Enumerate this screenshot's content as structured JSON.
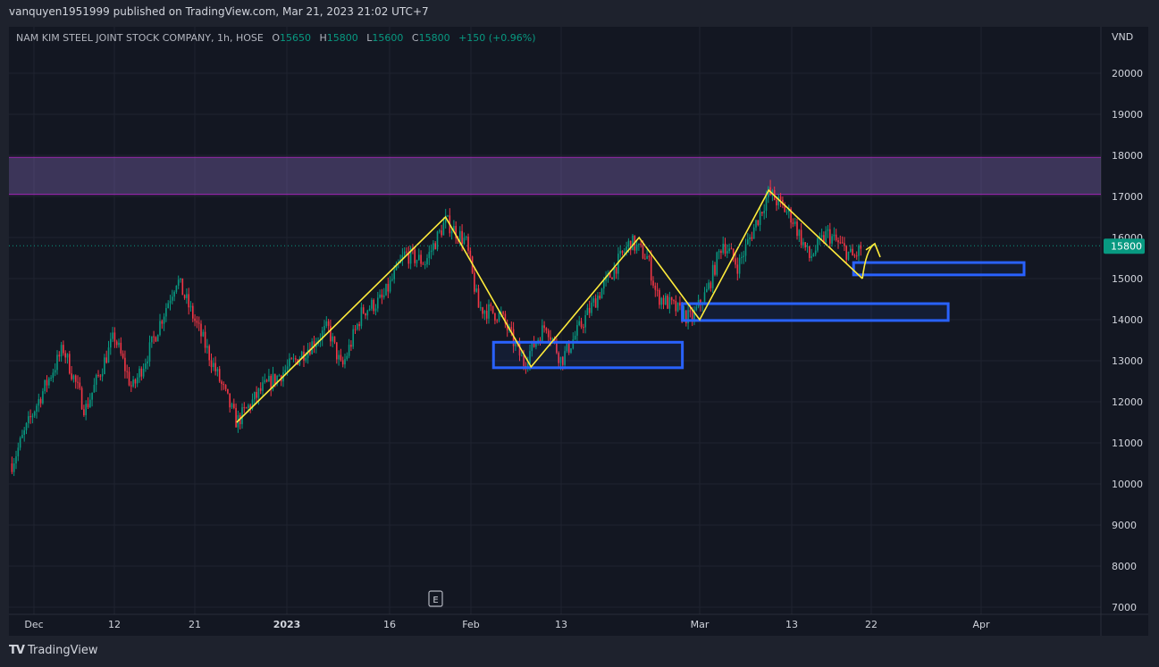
{
  "header": {
    "published": "vanquyen1951999 published on TradingView.com, Mar 21, 2023 21:02 UTC+7"
  },
  "legend": {
    "symbol": "NAM KIM STEEL JOINT STOCK COMPANY, 1h, HOSE",
    "o_label": "O",
    "o": "15650",
    "h_label": "H",
    "h": "15800",
    "l_label": "L",
    "l": "15600",
    "c_label": "C",
    "c": "15800",
    "change": "+150 (+0.96%)"
  },
  "footer": {
    "brand": "TradingView"
  },
  "earnings_marker": "E",
  "chart_data": {
    "type": "candlestick",
    "timeframe": "1h",
    "currency": "VND",
    "ylim": [
      7000,
      20500
    ],
    "y_ticks": [
      "20000",
      "19000",
      "18000",
      "17000",
      "16000",
      "15000",
      "14000",
      "13000",
      "12000",
      "11000",
      "10000",
      "9000",
      "8000",
      "7000"
    ],
    "x_ticks": [
      {
        "label": "Dec",
        "date": "2022-12-01"
      },
      {
        "label": "12",
        "date": "2022-12-12"
      },
      {
        "label": "21",
        "date": "2022-12-21"
      },
      {
        "label": "2023",
        "date": "2023-01-01"
      },
      {
        "label": "16",
        "date": "2023-01-16"
      },
      {
        "label": "Feb",
        "date": "2023-02-01"
      },
      {
        "label": "13",
        "date": "2023-02-13"
      },
      {
        "label": "Mar",
        "date": "2023-03-01"
      },
      {
        "label": "13",
        "date": "2023-03-13"
      },
      {
        "label": "22",
        "date": "2023-03-22"
      },
      {
        "label": "Apr",
        "date": "2023-04-01"
      }
    ],
    "last_price": "15800",
    "colors": {
      "up": "#089981",
      "down": "#f23645",
      "zigzag": "#ffeb3b",
      "boxes": "#2962ff",
      "zone": "#9c27b0"
    },
    "price_path": [
      [
        "2022-11-28",
        10500
      ],
      [
        "2022-12-01",
        11800
      ],
      [
        "2022-12-05",
        13300
      ],
      [
        "2022-12-08",
        11800
      ],
      [
        "2022-12-12",
        13600
      ],
      [
        "2022-12-14",
        12300
      ],
      [
        "2022-12-16",
        13300
      ],
      [
        "2022-12-19",
        15000
      ],
      [
        "2022-12-22",
        13500
      ],
      [
        "2022-12-26",
        11500
      ],
      [
        "2022-12-29",
        12300
      ],
      [
        "2023-01-01",
        12800
      ],
      [
        "2023-01-07",
        13800
      ],
      [
        "2023-01-09",
        12800
      ],
      [
        "2023-01-12",
        14200
      ],
      [
        "2023-01-15",
        14500
      ],
      [
        "2023-01-19",
        15600
      ],
      [
        "2023-01-23",
        15400
      ],
      [
        "2023-01-27",
        16400
      ],
      [
        "2023-01-31",
        15900
      ],
      [
        "2023-02-02",
        14300
      ],
      [
        "2023-02-05",
        14100
      ],
      [
        "2023-02-08",
        12950
      ],
      [
        "2023-02-11",
        13900
      ],
      [
        "2023-02-13",
        13000
      ],
      [
        "2023-02-17",
        14500
      ],
      [
        "2023-02-21",
        15900
      ],
      [
        "2023-02-23",
        15500
      ],
      [
        "2023-02-24",
        14600
      ],
      [
        "2023-02-28",
        14000
      ],
      [
        "2023-03-02",
        14700
      ],
      [
        "2023-03-04",
        15900
      ],
      [
        "2023-03-06",
        15300
      ],
      [
        "2023-03-10",
        17100
      ],
      [
        "2023-03-13",
        16500
      ],
      [
        "2023-03-15",
        15500
      ],
      [
        "2023-03-17",
        16100
      ],
      [
        "2023-03-20",
        15500
      ],
      [
        "2023-03-21",
        15800
      ]
    ],
    "drawings": {
      "resistance_zone": {
        "from": 17050,
        "to": 17950
      },
      "zigzag": [
        [
          "2022-12-26",
          11500
        ],
        [
          "2023-01-27",
          16500
        ],
        [
          "2023-02-09",
          12850
        ],
        [
          "2023-02-22",
          16000
        ],
        [
          "2023-03-01",
          14000
        ],
        [
          "2023-03-10",
          17150
        ],
        [
          "2023-03-21",
          15000
        ]
      ],
      "arrow": [
        [
          "2023-03-21",
          15000
        ],
        [
          "2023-03-22",
          15850
        ]
      ],
      "boxes": [
        {
          "start": "2023-02-04",
          "end": "2023-02-27",
          "low": 12830,
          "high": 13450
        },
        {
          "start": "2023-02-27",
          "end": "2023-03-29",
          "low": 13980,
          "high": 14390
        },
        {
          "start": "2023-03-20",
          "end": "2023-04-05",
          "low": 15090,
          "high": 15390
        }
      ]
    }
  }
}
